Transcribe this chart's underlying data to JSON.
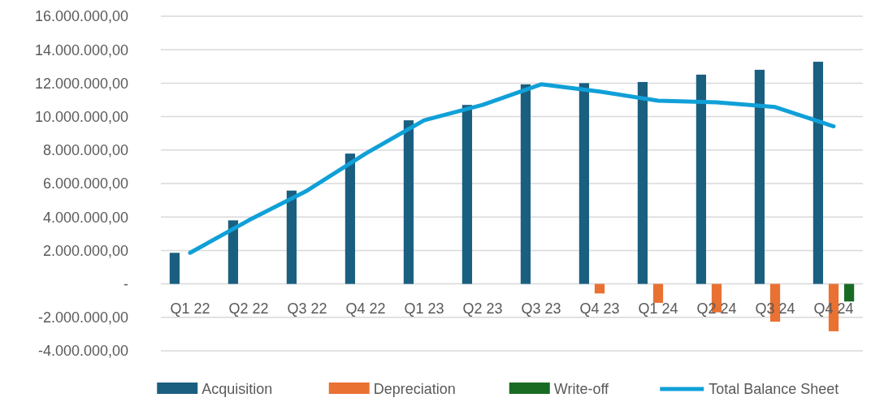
{
  "chart_data": {
    "type": "bar",
    "categories": [
      "Q1 22",
      "Q2 22",
      "Q3 22",
      "Q4 22",
      "Q1 23",
      "Q2 23",
      "Q3 23",
      "Q4 23",
      "Q1 24",
      "Q2 24",
      "Q3 24",
      "Q4 24"
    ],
    "series": [
      {
        "name": "Acquisition",
        "color": "#1a5f80",
        "values": [
          1860000,
          3800000,
          5580000,
          7790000,
          9780000,
          10700000,
          11930000,
          12000000,
          12070000,
          12510000,
          12800000,
          13280000
        ]
      },
      {
        "name": "Depreciation",
        "color": "#e97132",
        "values": [
          null,
          null,
          null,
          null,
          null,
          null,
          null,
          -570000,
          -1130000,
          -1700000,
          -2260000,
          -2830000
        ]
      },
      {
        "name": "Write-off",
        "color": "#196b24",
        "values": [
          null,
          null,
          null,
          null,
          null,
          null,
          null,
          null,
          null,
          null,
          null,
          -1050000
        ]
      },
      {
        "name": "Total Balance Sheet",
        "type": "line",
        "color": "#10a0d8",
        "values": [
          1860000,
          3800000,
          5580000,
          7790000,
          9780000,
          10700000,
          11930000,
          11500000,
          10950000,
          10850000,
          10570000,
          9420000
        ]
      }
    ],
    "ylim": [
      -4000000,
      16000000
    ],
    "yticks": [
      {
        "value": -4000000,
        "label": "-4.000.000,00"
      },
      {
        "value": -2000000,
        "label": "-2.000.000,00"
      },
      {
        "value": 0,
        "label": "-"
      },
      {
        "value": 2000000,
        "label": "2.000.000,00"
      },
      {
        "value": 4000000,
        "label": "4.000.000,00"
      },
      {
        "value": 6000000,
        "label": "6.000.000,00"
      },
      {
        "value": 8000000,
        "label": "8.000.000,00"
      },
      {
        "value": 10000000,
        "label": "10.000.000,00"
      },
      {
        "value": 12000000,
        "label": "12.000.000,00"
      },
      {
        "value": 14000000,
        "label": "14.000.000,00"
      },
      {
        "value": 16000000,
        "label": "16.000.000,00"
      }
    ],
    "grid": "y",
    "legend": "bottom",
    "marker": "none",
    "line_style": "solid"
  }
}
